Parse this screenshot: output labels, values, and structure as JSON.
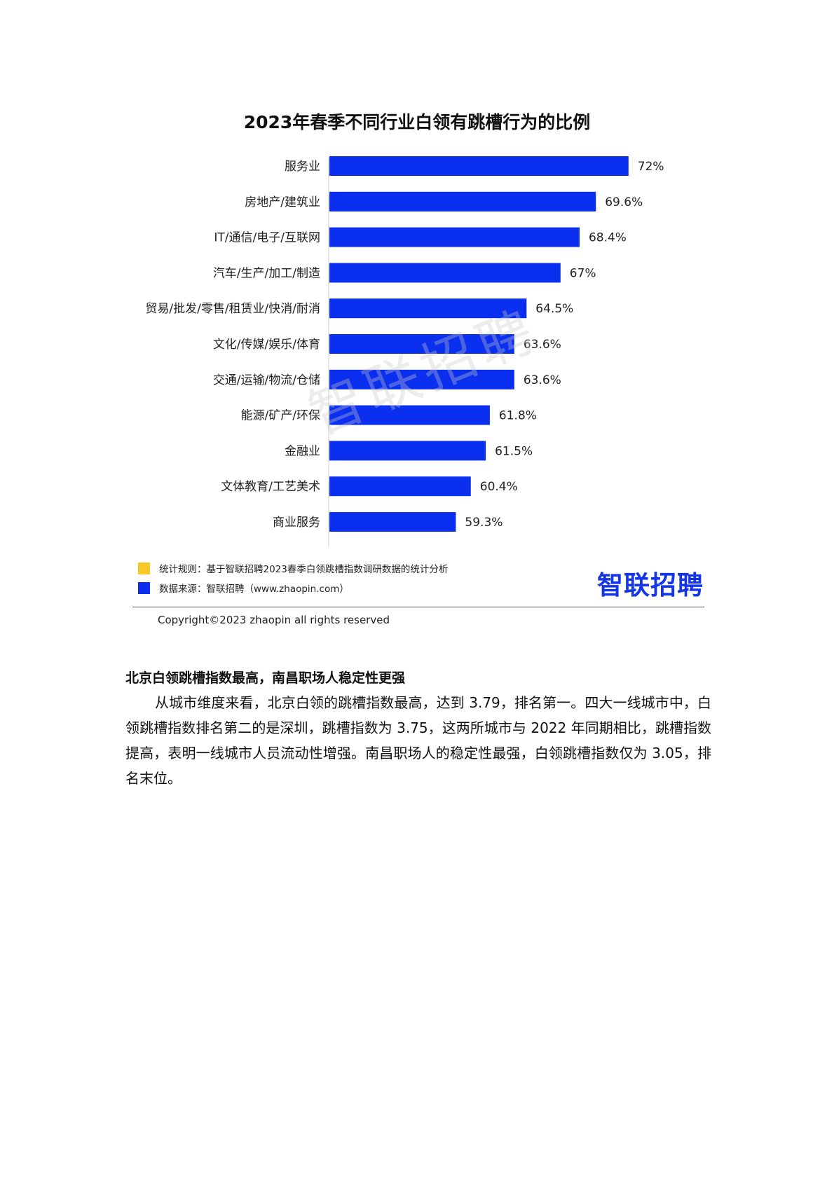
{
  "chart_data": {
    "type": "bar",
    "orientation": "horizontal",
    "title": "2023年春季不同行业白领有跳槽行为的比例",
    "categories": [
      "服务业",
      "房地产/建筑业",
      "IT/通信/电子/互联网",
      "汽车/生产/加工/制造",
      "贸易/批发/零售/租赁业/快消/耐消",
      "文化/传媒/娱乐/体育",
      "交通/运输/物流/仓储",
      "能源/矿产/环保",
      "金融业",
      "文体教育/工艺美术",
      "商业服务"
    ],
    "values": [
      72,
      69.6,
      68.4,
      67,
      64.5,
      63.6,
      63.6,
      61.8,
      61.5,
      60.4,
      59.3
    ],
    "labels": [
      "72%",
      "69.6%",
      "68.4%",
      "67%",
      "64.5%",
      "63.6%",
      "63.6%",
      "61.8%",
      "61.5%",
      "60.4%",
      "59.3%"
    ],
    "xlim": [
      50,
      74
    ],
    "bar_color": "#0a2fee",
    "grid": false
  },
  "watermark": "智联招聘",
  "legend": [
    {
      "text": "统计规则：基于智联招聘2023春季白领跳槽指数调研数据的统计分析",
      "color": "#f7c826"
    },
    {
      "text": "数据来源：智联招聘（www.zhaopin.com）",
      "color": "#0a2fee"
    }
  ],
  "logo": "智联招聘",
  "copyright": "Copyright©2023 zhaopin all rights reserved",
  "section": {
    "heading": "北京白领跳槽指数最高，南昌职场人稳定性更强",
    "paragraph": "从城市维度来看，北京白领的跳槽指数最高，达到 3.79，排名第一。四大一线城市中，白领跳槽指数排名第二的是深圳，跳槽指数为 3.75，这两所城市与 2022 年同期相比，跳槽指数提高，表明一线城市人员流动性增强。南昌职场人的稳定性最强，白领跳槽指数仅为 3.05，排名末位。"
  }
}
